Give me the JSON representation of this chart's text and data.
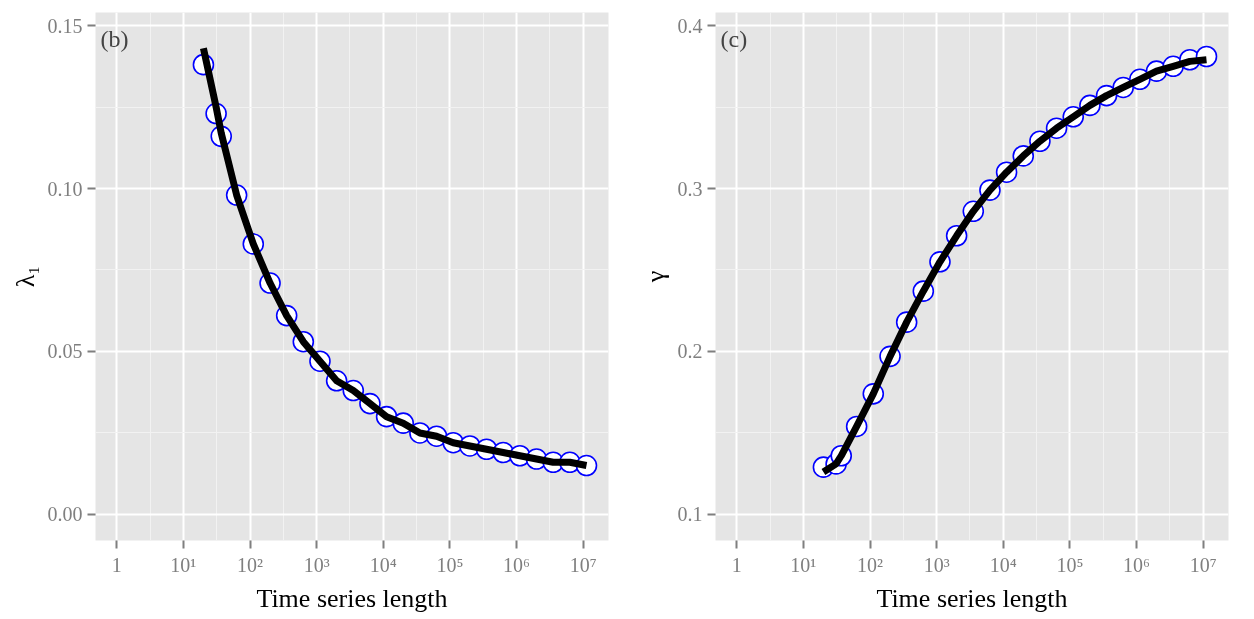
{
  "chart_data": [
    {
      "type": "scatter",
      "title": "(b)",
      "xlabel": "Time series length",
      "ylabel": "λ₁",
      "log": "x",
      "grid": true,
      "x": [
        20,
        31,
        37,
        63,
        112,
        200,
        355,
        631,
        1122,
        1995,
        3548,
        6310,
        11220,
        19950,
        35480,
        63100,
        112200,
        199500,
        354800,
        631000,
        1122000,
        1995000,
        3548000,
        6310000,
        11220000
      ],
      "xlim": [
        0.48,
        24000000
      ],
      "ylim": [
        -0.008,
        0.154
      ],
      "xticks": [
        1,
        {
          "value": 10,
          "label": "10¹"
        },
        {
          "value": 100,
          "label": "10²"
        },
        {
          "value": 1000,
          "label": "10³"
        },
        {
          "value": 10000,
          "label": "10⁴"
        },
        {
          "value": 100000,
          "label": "10⁵"
        },
        {
          "value": 1000000,
          "label": "10⁶"
        },
        {
          "value": 10000000,
          "label": "10⁷"
        }
      ],
      "yticks": [
        {
          "value": 0,
          "label": "0.00"
        },
        0.05,
        {
          "value": 0.1,
          "label": "0.10"
        },
        0.15
      ],
      "series": [
        {
          "marker": "circle",
          "color": "#0000ff",
          "values": [
            0.138,
            0.123,
            0.116,
            0.098,
            0.083,
            0.071,
            0.061,
            0.053,
            0.047,
            0.041,
            0.038,
            0.034,
            0.03,
            0.028,
            0.025,
            0.024,
            0.022,
            0.021,
            0.02,
            0.019,
            0.018,
            0.017,
            0.016,
            0.016,
            0.015
          ]
        },
        {
          "type": "line",
          "marker": "none",
          "color": "#000000",
          "values": [
            0.143,
            0.125,
            0.117,
            0.098,
            0.083,
            0.071,
            0.061,
            0.053,
            0.047,
            0.041,
            0.038,
            0.034,
            0.03,
            0.028,
            0.025,
            0.024,
            0.022,
            0.021,
            0.02,
            0.019,
            0.018,
            0.017,
            0.016,
            0.016,
            0.015
          ]
        }
      ]
    },
    {
      "type": "scatter",
      "title": "(c)",
      "xlabel": "Time series length",
      "ylabel": "γ",
      "log": "x",
      "grid": true,
      "x": [
        20,
        31,
        37,
        63,
        112,
        200,
        355,
        631,
        1122,
        1995,
        3548,
        6310,
        11220,
        19950,
        35480,
        63100,
        112200,
        199500,
        354800,
        631000,
        1122000,
        1995000,
        3548000,
        6310000,
        11220000
      ],
      "xlim": [
        0.48,
        24000000
      ],
      "ylim": [
        0.084,
        0.408
      ],
      "xticks": [
        1,
        {
          "value": 10,
          "label": "10¹"
        },
        {
          "value": 100,
          "label": "10²"
        },
        {
          "value": 1000,
          "label": "10³"
        },
        {
          "value": 10000,
          "label": "10⁴"
        },
        {
          "value": 100000,
          "label": "10⁵"
        },
        {
          "value": 1000000,
          "label": "10⁶"
        },
        {
          "value": 10000000,
          "label": "10⁷"
        }
      ],
      "yticks": [
        0.1,
        0.2,
        0.3,
        0.4
      ],
      "series": [
        {
          "marker": "circle",
          "color": "#0000ff",
          "values": [
            0.129,
            0.131,
            0.136,
            0.154,
            0.174,
            0.197,
            0.218,
            0.237,
            0.255,
            0.271,
            0.286,
            0.299,
            0.31,
            0.32,
            0.329,
            0.337,
            0.344,
            0.351,
            0.357,
            0.362,
            0.367,
            0.372,
            0.375,
            0.379,
            0.381
          ]
        },
        {
          "type": "line",
          "marker": "none",
          "color": "#000000",
          "values": [
            0.126,
            0.131,
            0.136,
            0.154,
            0.174,
            0.197,
            0.218,
            0.237,
            0.255,
            0.271,
            0.286,
            0.299,
            0.31,
            0.32,
            0.329,
            0.337,
            0.344,
            0.351,
            0.357,
            0.362,
            0.367,
            0.372,
            0.375,
            0.378,
            0.379
          ]
        }
      ]
    }
  ]
}
